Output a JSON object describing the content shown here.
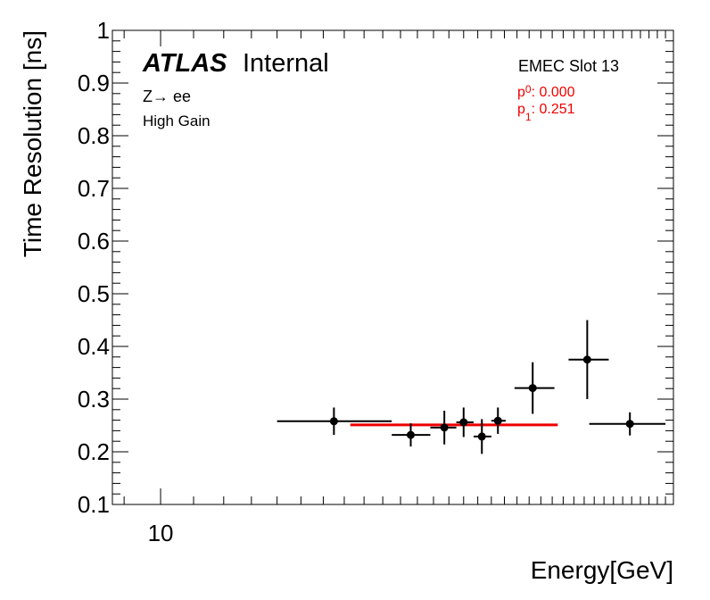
{
  "chart_data": {
    "type": "scatter",
    "xlabel": "Energy[GeV]",
    "ylabel": "Time Resolution [ns]",
    "xscale": "log",
    "xlim": [
      8.7,
      44
    ],
    "ylim": [
      0.1,
      1.0
    ],
    "x_tick_labels": [
      {
        "value": 10,
        "label": "10"
      }
    ],
    "y_ticks": [
      0.1,
      0.2,
      0.3,
      0.4,
      0.5,
      0.6,
      0.7,
      0.8,
      0.9,
      1.0
    ],
    "y_tick_labels": [
      "0.1",
      "0.2",
      "0.3",
      "0.4",
      "0.5",
      "0.6",
      "0.7",
      "0.8",
      "0.9",
      "1"
    ],
    "grid": false,
    "points": [
      {
        "x": 16.5,
        "xlow": 14.0,
        "xhigh": 19.5,
        "y": 0.258,
        "yerr": 0.026
      },
      {
        "x": 20.6,
        "xlow": 19.5,
        "xhigh": 21.8,
        "y": 0.232,
        "yerr": 0.022
      },
      {
        "x": 22.7,
        "xlow": 21.8,
        "xhigh": 23.5,
        "y": 0.246,
        "yerr": 0.032
      },
      {
        "x": 24.0,
        "xlow": 23.5,
        "xhigh": 24.7,
        "y": 0.256,
        "yerr": 0.028
      },
      {
        "x": 25.3,
        "xlow": 24.7,
        "xhigh": 26.0,
        "y": 0.229,
        "yerr": 0.033
      },
      {
        "x": 26.5,
        "xlow": 26.0,
        "xhigh": 27.1,
        "y": 0.259,
        "yerr": 0.025
      },
      {
        "x": 29.3,
        "xlow": 27.8,
        "xhigh": 31.2,
        "y": 0.321,
        "yerr": 0.049
      },
      {
        "x": 34.3,
        "xlow": 32.5,
        "xhigh": 36.5,
        "y": 0.375,
        "yerr": 0.075
      },
      {
        "x": 38.8,
        "xlow": 34.5,
        "xhigh": 43.0,
        "y": 0.253,
        "yerr": 0.022
      }
    ],
    "fit": {
      "x_start": 17.3,
      "x_end": 31.5,
      "y": 0.251,
      "color": "#ee0000"
    },
    "marker_color": "#000000"
  },
  "labels": {
    "atlas": "ATLAS",
    "internal": "Internal",
    "process": "Z→ ee",
    "gain": "High Gain",
    "slot": "EMEC Slot 13"
  },
  "fit_params": {
    "p0_name": "p",
    "p0_sub": "0",
    "p0_value": ": 0.000",
    "p1_name": "p",
    "p1_sub": "1",
    "p1_value": ": 0.251",
    "color": "#ee0000"
  }
}
